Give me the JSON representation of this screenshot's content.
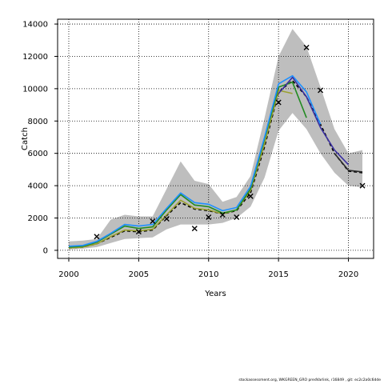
{
  "footer": "stockassessment.org, WKGREEN_GRO predVarlink, r16849 , git: ec2c2a0c6dde",
  "chart_data": {
    "type": "line",
    "xlabel": "Years",
    "ylabel": "Catch",
    "xlim": [
      1999.2,
      2021.8
    ],
    "ylim": [
      -500,
      14300
    ],
    "xticks": [
      2000,
      2005,
      2010,
      2015,
      2020
    ],
    "yticks": [
      0,
      2000,
      4000,
      6000,
      8000,
      10000,
      12000,
      14000
    ],
    "grid": true,
    "band": {
      "color": "#bebebe",
      "x": [
        2000,
        2001,
        2002,
        2003,
        2004,
        2005,
        2006,
        2007,
        2008,
        2009,
        2010,
        2011,
        2012,
        2013,
        2014,
        2015,
        2016,
        2017,
        2018,
        2019,
        2020,
        2021
      ],
      "upper": [
        550,
        600,
        700,
        1900,
        2200,
        2100,
        2100,
        3800,
        5500,
        4300,
        4100,
        3000,
        3300,
        4600,
        8200,
        12000,
        13700,
        12600,
        10100,
        7500,
        6000,
        6200
      ],
      "lower": [
        50,
        100,
        200,
        450,
        700,
        750,
        800,
        1300,
        1600,
        1600,
        1600,
        1700,
        2000,
        2700,
        4500,
        7400,
        8500,
        7500,
        6000,
        4800,
        4000,
        3900
      ]
    },
    "series": [
      {
        "color": "#000000",
        "dash": "4,3",
        "x": [
          2000,
          2001,
          2002,
          2003,
          2004,
          2005,
          2006,
          2007,
          2008,
          2009,
          2010,
          2011,
          2012,
          2013,
          2014,
          2015,
          2016,
          2017,
          2018,
          2019,
          2020,
          2021
        ],
        "values": [
          150,
          200,
          400,
          800,
          1200,
          1150,
          1250,
          2150,
          2950,
          2550,
          2450,
          2250,
          2450,
          3550,
          6400,
          9800,
          10500,
          9500,
          7800,
          6000,
          4900,
          4800
        ]
      },
      {
        "color": "#9aa030",
        "x": [
          2000,
          2001,
          2002,
          2003,
          2004,
          2005,
          2006,
          2007,
          2008,
          2009,
          2010,
          2011,
          2012,
          2013,
          2014,
          2015,
          2016
        ],
        "values": [
          150,
          200,
          400,
          850,
          1250,
          1200,
          1300,
          2200,
          3100,
          2600,
          2500,
          2250,
          2500,
          3700,
          6600,
          9900,
          9700
        ]
      },
      {
        "color": "#228b22",
        "x": [
          2000,
          2001,
          2002,
          2003,
          2004,
          2005,
          2006,
          2007,
          2008,
          2009,
          2010,
          2011,
          2012,
          2013,
          2014,
          2015,
          2016,
          2017
        ],
        "values": [
          200,
          250,
          500,
          1000,
          1500,
          1350,
          1450,
          2500,
          3450,
          2800,
          2700,
          2300,
          2500,
          3800,
          6900,
          10100,
          10400,
          8200
        ]
      },
      {
        "color": "#1e90ff",
        "x": [
          2000,
          2001,
          2002,
          2003,
          2004,
          2005,
          2006,
          2007,
          2008,
          2009,
          2010,
          2011,
          2012,
          2013,
          2014,
          2015,
          2016,
          2017,
          2018
        ],
        "values": [
          250,
          300,
          550,
          1050,
          1600,
          1500,
          1600,
          2600,
          3550,
          2950,
          2850,
          2450,
          2650,
          3950,
          7000,
          10300,
          10800,
          9800,
          7800
        ]
      },
      {
        "color": "#3a2fa0",
        "x": [
          2015,
          2016,
          2017,
          2018,
          2019,
          2020
        ],
        "values": [
          9700,
          10700,
          9500,
          7600,
          6200,
          5300
        ]
      },
      {
        "color": "#2a2a2a",
        "x": [
          2019,
          2020,
          2021
        ],
        "values": [
          6000,
          4950,
          4850
        ]
      }
    ],
    "observed": {
      "marker": "x",
      "x": [
        2002,
        2005,
        2006,
        2007,
        2009,
        2010,
        2011,
        2012,
        2013,
        2015,
        2017,
        2018,
        2021
      ],
      "values": [
        850,
        1150,
        1800,
        1950,
        1350,
        2050,
        2200,
        2050,
        3350,
        9150,
        12550,
        9900,
        4000
      ]
    }
  }
}
